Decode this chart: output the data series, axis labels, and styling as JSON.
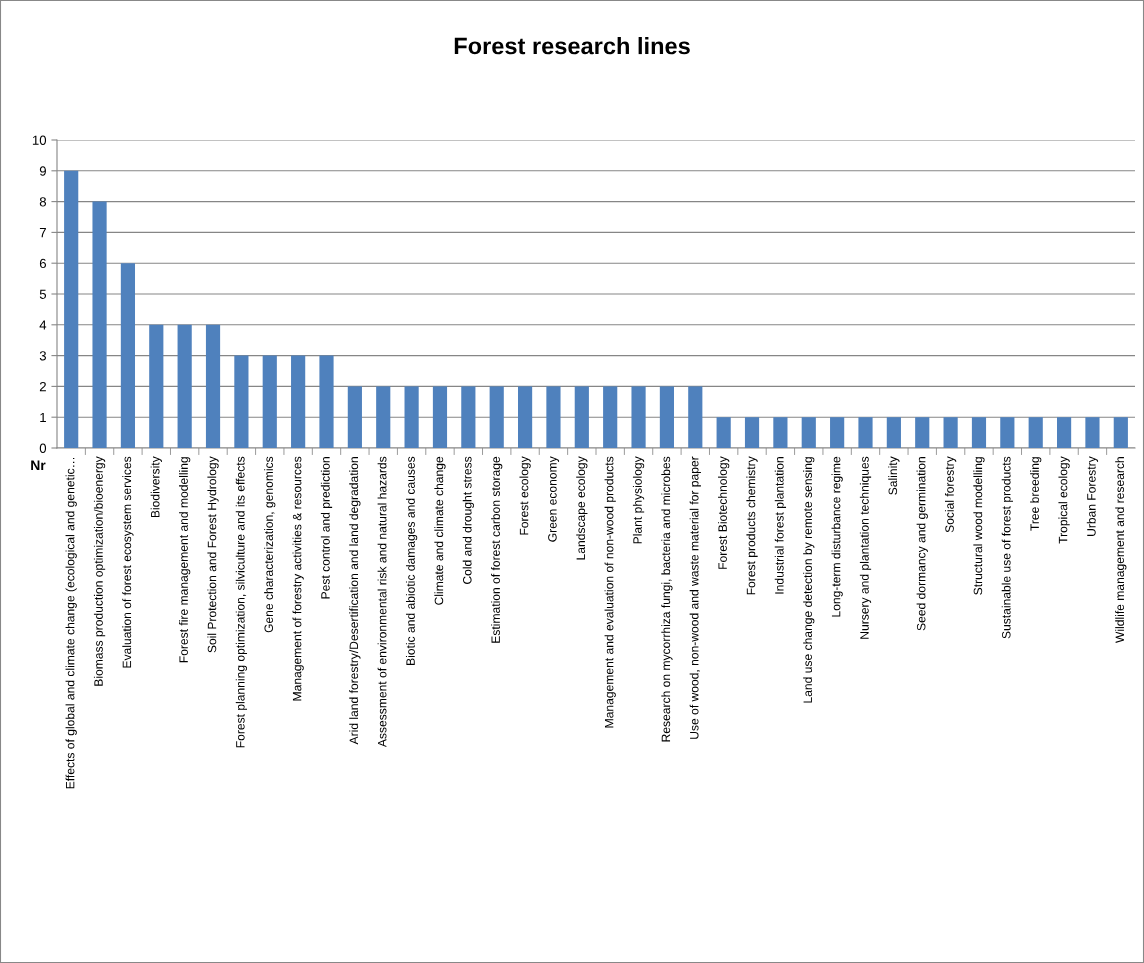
{
  "chart_data": {
    "type": "bar",
    "title": "Forest research lines",
    "xlabel": "Nr",
    "categories": [
      "Effects of global and climate change (ecological and genetic…",
      "Biomass production optimization/bioenergy",
      "Evaluation of forest ecosystem services",
      "Biodiversity",
      "Forest fire management and modelling",
      "Soil Protection and Forest Hydrology",
      "Forest planning optimization, silviculture and its effects",
      "Gene characterization, genomics",
      "Management of forestry activities & resources",
      "Pest control and prediction",
      "Arid land forestry/Desertification and land degradation",
      "Assessment of environmental risk and natural hazards",
      "Biotic and abiotic damages and causes",
      "Climate and climate change",
      "Cold and drought stress",
      "Estimation of forest carbon storage",
      "Forest ecology",
      "Green economy",
      "Landscape ecology",
      "Management and evaluation of non-wood products",
      "Plant physiology",
      "Research on mycorrhiza fungi, bacteria and microbes",
      "Use of wood, non-wood and waste material for paper",
      "Forest Biotechnology",
      "Forest products chemistry",
      "Industrial forest plantation",
      "Land use change detection by remote sensing",
      "Long-term disturbance regime",
      "Nursery and plantation techniques",
      "Salinity",
      "Seed dormancy and germination",
      "Social forestry",
      "Structural wood modelling",
      "Sustainable use of forest products",
      "Tree breeding",
      "Tropical ecology",
      "Urban Forestry",
      "Wildlife management and research"
    ],
    "values": [
      9,
      8,
      6,
      4,
      4,
      4,
      3,
      3,
      3,
      3,
      2,
      2,
      2,
      2,
      2,
      2,
      2,
      2,
      2,
      2,
      2,
      2,
      2,
      1,
      1,
      1,
      1,
      1,
      1,
      1,
      1,
      1,
      1,
      1,
      1,
      1,
      1,
      1
    ],
    "color": "#4f81bd",
    "ylim": [
      0,
      10
    ],
    "yticks": [
      0,
      1,
      2,
      3,
      4,
      5,
      6,
      7,
      8,
      9,
      10
    ],
    "grid": "y"
  }
}
